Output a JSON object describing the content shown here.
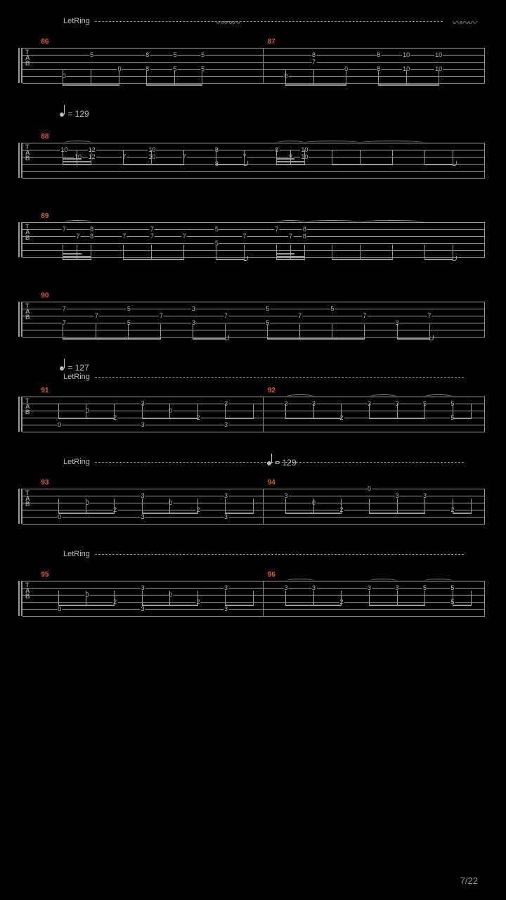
{
  "page_number": "7/22",
  "colors": {
    "background": "#000000",
    "staff_line": "#999999",
    "text": "#bbbbbb",
    "bar_number": "#e85a2a"
  },
  "tab_label": [
    "T",
    "A",
    "B"
  ],
  "tempo_markings": {
    "t1": "= 129",
    "t2": "= 127",
    "t3": "= 129"
  },
  "let_ring_label": "LetRing",
  "systems": [
    {
      "bars": [
        {
          "num": "86",
          "start_pct": 4
        },
        {
          "num": "87",
          "start_pct": 53
        }
      ],
      "annotations": {
        "letring": true,
        "wavy_segments": [
          [
            42,
            8
          ],
          [
            93,
            8
          ]
        ]
      },
      "notes": [
        {
          "x": 9,
          "s": 4,
          "f": "0"
        },
        {
          "x": 15,
          "s": 1,
          "f": "5"
        },
        {
          "x": 21,
          "s": 3,
          "f": "0"
        },
        {
          "x": 27,
          "s": 1,
          "f": "8"
        },
        {
          "x": 27,
          "s": 3,
          "f": "8"
        },
        {
          "x": 33,
          "s": 1,
          "f": "5"
        },
        {
          "x": 33,
          "s": 3,
          "f": "5"
        },
        {
          "x": 39,
          "s": 1,
          "f": "5"
        },
        {
          "x": 39,
          "s": 3,
          "f": "5"
        },
        {
          "x": 57,
          "s": 4,
          "f": "0"
        },
        {
          "x": 63,
          "s": 1,
          "f": "8"
        },
        {
          "x": 63,
          "s": 2,
          "f": "7"
        },
        {
          "x": 70,
          "s": 3,
          "f": "0"
        },
        {
          "x": 77,
          "s": 1,
          "f": "8"
        },
        {
          "x": 77,
          "s": 3,
          "f": "8"
        },
        {
          "x": 83,
          "s": 1,
          "f": "10"
        },
        {
          "x": 83,
          "s": 3,
          "f": "10"
        },
        {
          "x": 90,
          "s": 1,
          "f": "10"
        },
        {
          "x": 90,
          "s": 3,
          "f": "10"
        }
      ],
      "stems": [
        {
          "beams": [
            [
              9,
              21
            ],
            [
              27,
              39
            ]
          ],
          "stems": [
            9,
            15,
            21,
            27,
            33,
            39
          ]
        },
        {
          "beams": [
            [
              57,
              70
            ],
            [
              77,
              90
            ]
          ],
          "stems": [
            57,
            63,
            70,
            77,
            83,
            90
          ]
        }
      ]
    },
    {
      "pre_tempo": "t1",
      "bars": [
        {
          "num": "88",
          "start_pct": 4
        }
      ],
      "notes": [
        {
          "x": 9,
          "s": 1,
          "f": "10"
        },
        {
          "x": 12,
          "s": 2,
          "f": "10"
        },
        {
          "x": 15,
          "s": 1,
          "f": "12"
        },
        {
          "x": 15,
          "s": 2,
          "f": "12"
        },
        {
          "x": 22,
          "s": 2,
          "f": "7"
        },
        {
          "x": 28,
          "s": 1,
          "f": "10"
        },
        {
          "x": 28,
          "s": 2,
          "f": "10"
        },
        {
          "x": 35,
          "s": 2,
          "f": "7"
        },
        {
          "x": 42,
          "s": 1,
          "f": "8"
        },
        {
          "x": 42,
          "s": 3,
          "f": "8"
        },
        {
          "x": 48,
          "s": 2,
          "f": "7"
        },
        {
          "x": 55,
          "s": 1,
          "f": "8"
        },
        {
          "x": 58,
          "s": 2,
          "f": "8"
        },
        {
          "x": 61,
          "s": 1,
          "f": "10"
        },
        {
          "x": 61,
          "s": 2,
          "f": "10"
        }
      ],
      "stems": [
        {
          "beams": [
            [
              9,
              15
            ]
          ],
          "beams2": [
            [
              9,
              15
            ]
          ],
          "beams3": [
            [
              9,
              13
            ]
          ],
          "stems": [
            9,
            12,
            15
          ]
        },
        {
          "beams": [
            [
              22,
              35
            ]
          ],
          "stems": [
            22,
            28,
            35
          ]
        },
        {
          "beams": [
            [
              42,
              48
            ]
          ],
          "stems": [
            42,
            48
          ],
          "flag": 48
        },
        {
          "beams": [
            [
              55,
              61
            ]
          ],
          "beams2": [
            [
              55,
              61
            ]
          ],
          "beams3": [
            [
              55,
              59
            ]
          ],
          "stems": [
            55,
            58,
            61
          ]
        },
        {
          "beams": [
            [
              67,
              80
            ]
          ],
          "stems": [
            67,
            73,
            80
          ]
        },
        {
          "beams": [
            [
              87,
              93
            ]
          ],
          "stems": [
            87,
            93
          ],
          "flag": 93
        }
      ],
      "tie_overs": [
        [
          9,
          15
        ],
        [
          55,
          61
        ],
        [
          61,
          73
        ],
        [
          73,
          87
        ]
      ]
    },
    {
      "bars": [
        {
          "num": "89",
          "start_pct": 4
        }
      ],
      "notes": [
        {
          "x": 9,
          "s": 1,
          "f": "7"
        },
        {
          "x": 12,
          "s": 2,
          "f": "7"
        },
        {
          "x": 15,
          "s": 1,
          "f": "8"
        },
        {
          "x": 15,
          "s": 2,
          "f": "8"
        },
        {
          "x": 22,
          "s": 2,
          "f": "7"
        },
        {
          "x": 28,
          "s": 1,
          "f": "7"
        },
        {
          "x": 28,
          "s": 2,
          "f": "7"
        },
        {
          "x": 35,
          "s": 2,
          "f": "7"
        },
        {
          "x": 42,
          "s": 1,
          "f": "5"
        },
        {
          "x": 42,
          "s": 3,
          "f": "5"
        },
        {
          "x": 48,
          "s": 2,
          "f": "7"
        },
        {
          "x": 55,
          "s": 1,
          "f": "7"
        },
        {
          "x": 58,
          "s": 2,
          "f": "7"
        },
        {
          "x": 61,
          "s": 1,
          "f": "8"
        },
        {
          "x": 61,
          "s": 2,
          "f": "8"
        }
      ],
      "stems": [
        {
          "beams": [
            [
              9,
              15
            ]
          ],
          "beams2": [
            [
              9,
              15
            ]
          ],
          "beams3": [
            [
              9,
              13
            ]
          ],
          "stems": [
            9,
            12,
            15
          ]
        },
        {
          "beams": [
            [
              22,
              35
            ]
          ],
          "stems": [
            22,
            28,
            35
          ]
        },
        {
          "beams": [
            [
              42,
              48
            ]
          ],
          "stems": [
            42,
            48
          ],
          "flag": 48
        },
        {
          "beams": [
            [
              55,
              61
            ]
          ],
          "beams2": [
            [
              55,
              61
            ]
          ],
          "beams3": [
            [
              55,
              59
            ]
          ],
          "stems": [
            55,
            58,
            61
          ]
        },
        {
          "beams": [
            [
              67,
              80
            ]
          ],
          "stems": [
            67,
            73,
            80
          ]
        },
        {
          "beams": [
            [
              87,
              93
            ]
          ],
          "stems": [
            87,
            93
          ],
          "flag": 93
        }
      ],
      "tie_overs": [
        [
          9,
          15
        ],
        [
          55,
          61
        ],
        [
          61,
          73
        ],
        [
          73,
          87
        ]
      ]
    },
    {
      "bars": [
        {
          "num": "90",
          "start_pct": 4
        }
      ],
      "notes": [
        {
          "x": 9,
          "s": 1,
          "f": "7"
        },
        {
          "x": 9,
          "s": 3,
          "f": "7"
        },
        {
          "x": 16,
          "s": 2,
          "f": "7"
        },
        {
          "x": 23,
          "s": 1,
          "f": "5"
        },
        {
          "x": 23,
          "s": 3,
          "f": "5"
        },
        {
          "x": 30,
          "s": 2,
          "f": "7"
        },
        {
          "x": 37,
          "s": 1,
          "f": "3"
        },
        {
          "x": 37,
          "s": 3,
          "f": "3"
        },
        {
          "x": 44,
          "s": 2,
          "f": "7"
        },
        {
          "x": 53,
          "s": 1,
          "f": "5"
        },
        {
          "x": 53,
          "s": 3,
          "f": "5"
        },
        {
          "x": 60,
          "s": 2,
          "f": "7"
        },
        {
          "x": 67,
          "s": 1,
          "f": "5"
        },
        {
          "x": 74,
          "s": 2,
          "f": "7"
        },
        {
          "x": 81,
          "s": 3,
          "f": "3"
        },
        {
          "x": 88,
          "s": 2,
          "f": "7"
        }
      ],
      "stems": [
        {
          "beams": [
            [
              9,
              30
            ]
          ],
          "stems": [
            9,
            16,
            23,
            30
          ]
        },
        {
          "beams": [
            [
              37,
              44
            ]
          ],
          "stems": [
            37,
            44
          ],
          "flag": 44
        },
        {
          "beams": [
            [
              53,
              74
            ]
          ],
          "stems": [
            53,
            60,
            67,
            74
          ]
        },
        {
          "beams": [
            [
              81,
              88
            ]
          ],
          "stems": [
            81,
            88
          ],
          "flag": 88
        }
      ]
    },
    {
      "pre_tempo": "t2",
      "pre_letring": true,
      "bars": [
        {
          "num": "91",
          "start_pct": 4
        },
        {
          "num": "92",
          "start_pct": 53
        }
      ],
      "notes": [
        {
          "x": 8,
          "s": 4,
          "f": "0"
        },
        {
          "x": 14,
          "s": 2,
          "f": "0"
        },
        {
          "x": 20,
          "s": 3,
          "f": "2"
        },
        {
          "x": 26,
          "s": 1,
          "f": "3"
        },
        {
          "x": 26,
          "s": 4,
          "f": "3"
        },
        {
          "x": 32,
          "s": 2,
          "f": "0"
        },
        {
          "x": 38,
          "s": 3,
          "f": "2"
        },
        {
          "x": 44,
          "s": 1,
          "f": "3"
        },
        {
          "x": 44,
          "s": 4,
          "f": "3"
        },
        {
          "x": 57,
          "s": 1,
          "f": "3"
        },
        {
          "x": 63,
          "s": 1,
          "f": "3"
        },
        {
          "x": 69,
          "s": 3,
          "f": "2"
        },
        {
          "x": 75,
          "s": 1,
          "f": "3"
        },
        {
          "x": 81,
          "s": 1,
          "f": "3"
        },
        {
          "x": 87,
          "s": 1,
          "f": "5"
        },
        {
          "x": 93,
          "s": 1,
          "f": "5"
        },
        {
          "x": 93,
          "s": 3,
          "f": "5"
        }
      ],
      "stems": [
        {
          "beams": [
            [
              8,
              20
            ]
          ],
          "stems": [
            8,
            14,
            20
          ]
        },
        {
          "beams": [
            [
              26,
              38
            ]
          ],
          "stems": [
            26,
            32,
            38
          ]
        },
        {
          "beams": [
            [
              44,
              50
            ]
          ],
          "stems": [
            44,
            50
          ]
        },
        {
          "beams": [
            [
              57,
              69
            ]
          ],
          "stems": [
            57,
            63,
            69
          ]
        },
        {
          "beams": [
            [
              75,
              87
            ]
          ],
          "stems": [
            75,
            81,
            87
          ]
        },
        {
          "beams": [
            [
              93,
              97
            ]
          ],
          "stems": [
            93,
            97
          ]
        }
      ],
      "tie_overs": [
        [
          57,
          63
        ],
        [
          75,
          81
        ],
        [
          87,
          93
        ]
      ]
    },
    {
      "pre_letring": true,
      "mid_tempo": {
        "key": "t3",
        "x": 53
      },
      "bars": [
        {
          "num": "93",
          "start_pct": 4
        },
        {
          "num": "94",
          "start_pct": 53
        }
      ],
      "notes": [
        {
          "x": 8,
          "s": 4,
          "f": "0"
        },
        {
          "x": 14,
          "s": 2,
          "f": "0"
        },
        {
          "x": 20,
          "s": 3,
          "f": "2"
        },
        {
          "x": 26,
          "s": 1,
          "f": "3"
        },
        {
          "x": 26,
          "s": 4,
          "f": "3"
        },
        {
          "x": 32,
          "s": 2,
          "f": "0"
        },
        {
          "x": 38,
          "s": 3,
          "f": "2"
        },
        {
          "x": 44,
          "s": 1,
          "f": "3"
        },
        {
          "x": 44,
          "s": 4,
          "f": "3"
        },
        {
          "x": 57,
          "s": 1,
          "f": "3"
        },
        {
          "x": 63,
          "s": 2,
          "f": "0"
        },
        {
          "x": 69,
          "s": 3,
          "f": "2"
        },
        {
          "x": 75,
          "s": 0,
          "f": "0"
        },
        {
          "x": 81,
          "s": 1,
          "f": "3"
        },
        {
          "x": 87,
          "s": 1,
          "f": "3"
        },
        {
          "x": 93,
          "s": 3,
          "f": "2"
        }
      ],
      "stems": [
        {
          "beams": [
            [
              8,
              20
            ]
          ],
          "stems": [
            8,
            14,
            20
          ]
        },
        {
          "beams": [
            [
              26,
              38
            ]
          ],
          "stems": [
            26,
            32,
            38
          ]
        },
        {
          "beams": [
            [
              44,
              50
            ]
          ],
          "stems": [
            44,
            50
          ]
        },
        {
          "beams": [
            [
              57,
              69
            ]
          ],
          "stems": [
            57,
            63,
            69
          ]
        },
        {
          "beams": [
            [
              75,
              87
            ]
          ],
          "stems": [
            75,
            81,
            87
          ]
        },
        {
          "beams": [
            [
              93,
              97
            ]
          ],
          "stems": [
            93,
            97
          ]
        }
      ]
    },
    {
      "pre_letring": true,
      "bars": [
        {
          "num": "95",
          "start_pct": 4
        },
        {
          "num": "96",
          "start_pct": 53
        }
      ],
      "notes": [
        {
          "x": 8,
          "s": 4,
          "f": "0"
        },
        {
          "x": 14,
          "s": 2,
          "f": "0"
        },
        {
          "x": 20,
          "s": 3,
          "f": "2"
        },
        {
          "x": 26,
          "s": 1,
          "f": "3"
        },
        {
          "x": 26,
          "s": 4,
          "f": "3"
        },
        {
          "x": 32,
          "s": 2,
          "f": "0"
        },
        {
          "x": 38,
          "s": 3,
          "f": "2"
        },
        {
          "x": 44,
          "s": 1,
          "f": "3"
        },
        {
          "x": 44,
          "s": 4,
          "f": "3"
        },
        {
          "x": 57,
          "s": 1,
          "f": "3"
        },
        {
          "x": 63,
          "s": 1,
          "f": "3"
        },
        {
          "x": 69,
          "s": 3,
          "f": "2"
        },
        {
          "x": 75,
          "s": 1,
          "f": "3"
        },
        {
          "x": 81,
          "s": 1,
          "f": "3"
        },
        {
          "x": 87,
          "s": 1,
          "f": "5"
        },
        {
          "x": 93,
          "s": 1,
          "f": "5"
        },
        {
          "x": 93,
          "s": 3,
          "f": "5"
        }
      ],
      "stems": [
        {
          "beams": [
            [
              8,
              20
            ]
          ],
          "stems": [
            8,
            14,
            20
          ]
        },
        {
          "beams": [
            [
              26,
              38
            ]
          ],
          "stems": [
            26,
            32,
            38
          ]
        },
        {
          "beams": [
            [
              44,
              50
            ]
          ],
          "stems": [
            44,
            50
          ]
        },
        {
          "beams": [
            [
              57,
              69
            ]
          ],
          "stems": [
            57,
            63,
            69
          ]
        },
        {
          "beams": [
            [
              75,
              87
            ]
          ],
          "stems": [
            75,
            81,
            87
          ]
        },
        {
          "beams": [
            [
              93,
              97
            ]
          ],
          "stems": [
            93,
            97
          ]
        }
      ],
      "tie_overs": [
        [
          57,
          63
        ],
        [
          75,
          81
        ],
        [
          87,
          93
        ]
      ]
    }
  ]
}
